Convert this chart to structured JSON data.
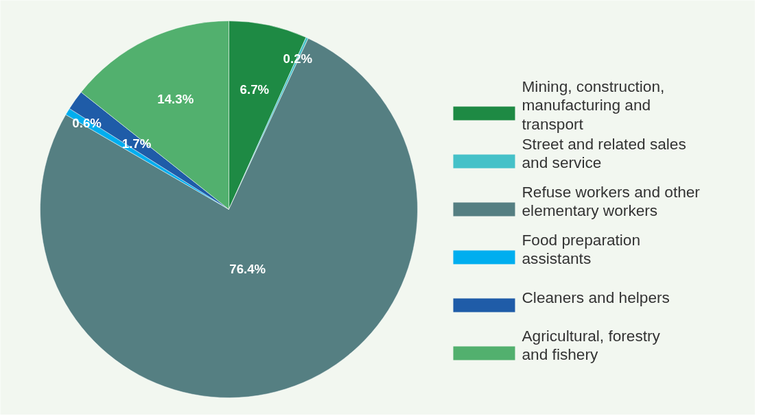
{
  "chart_data": {
    "type": "pie",
    "categories": [
      "Mining, construction, manufacturing and transport",
      "Street and related sales and service",
      "Refuse workers and other elementary workers",
      "Food preparation assistants",
      "Cleaners and helpers",
      "Agricultural, forestry and fishery"
    ],
    "values": [
      6.7,
      0.2,
      76.4,
      0.6,
      1.7,
      14.3
    ],
    "colors": [
      "#1e8a44",
      "#45c1c8",
      "#557f82",
      "#00aeef",
      "#1f5ca8",
      "#52b06e"
    ],
    "value_labels": [
      "6.7%",
      "0.2%",
      "76.4%",
      "0.6%",
      "1.7%",
      "14.3%"
    ],
    "legend": "right"
  }
}
